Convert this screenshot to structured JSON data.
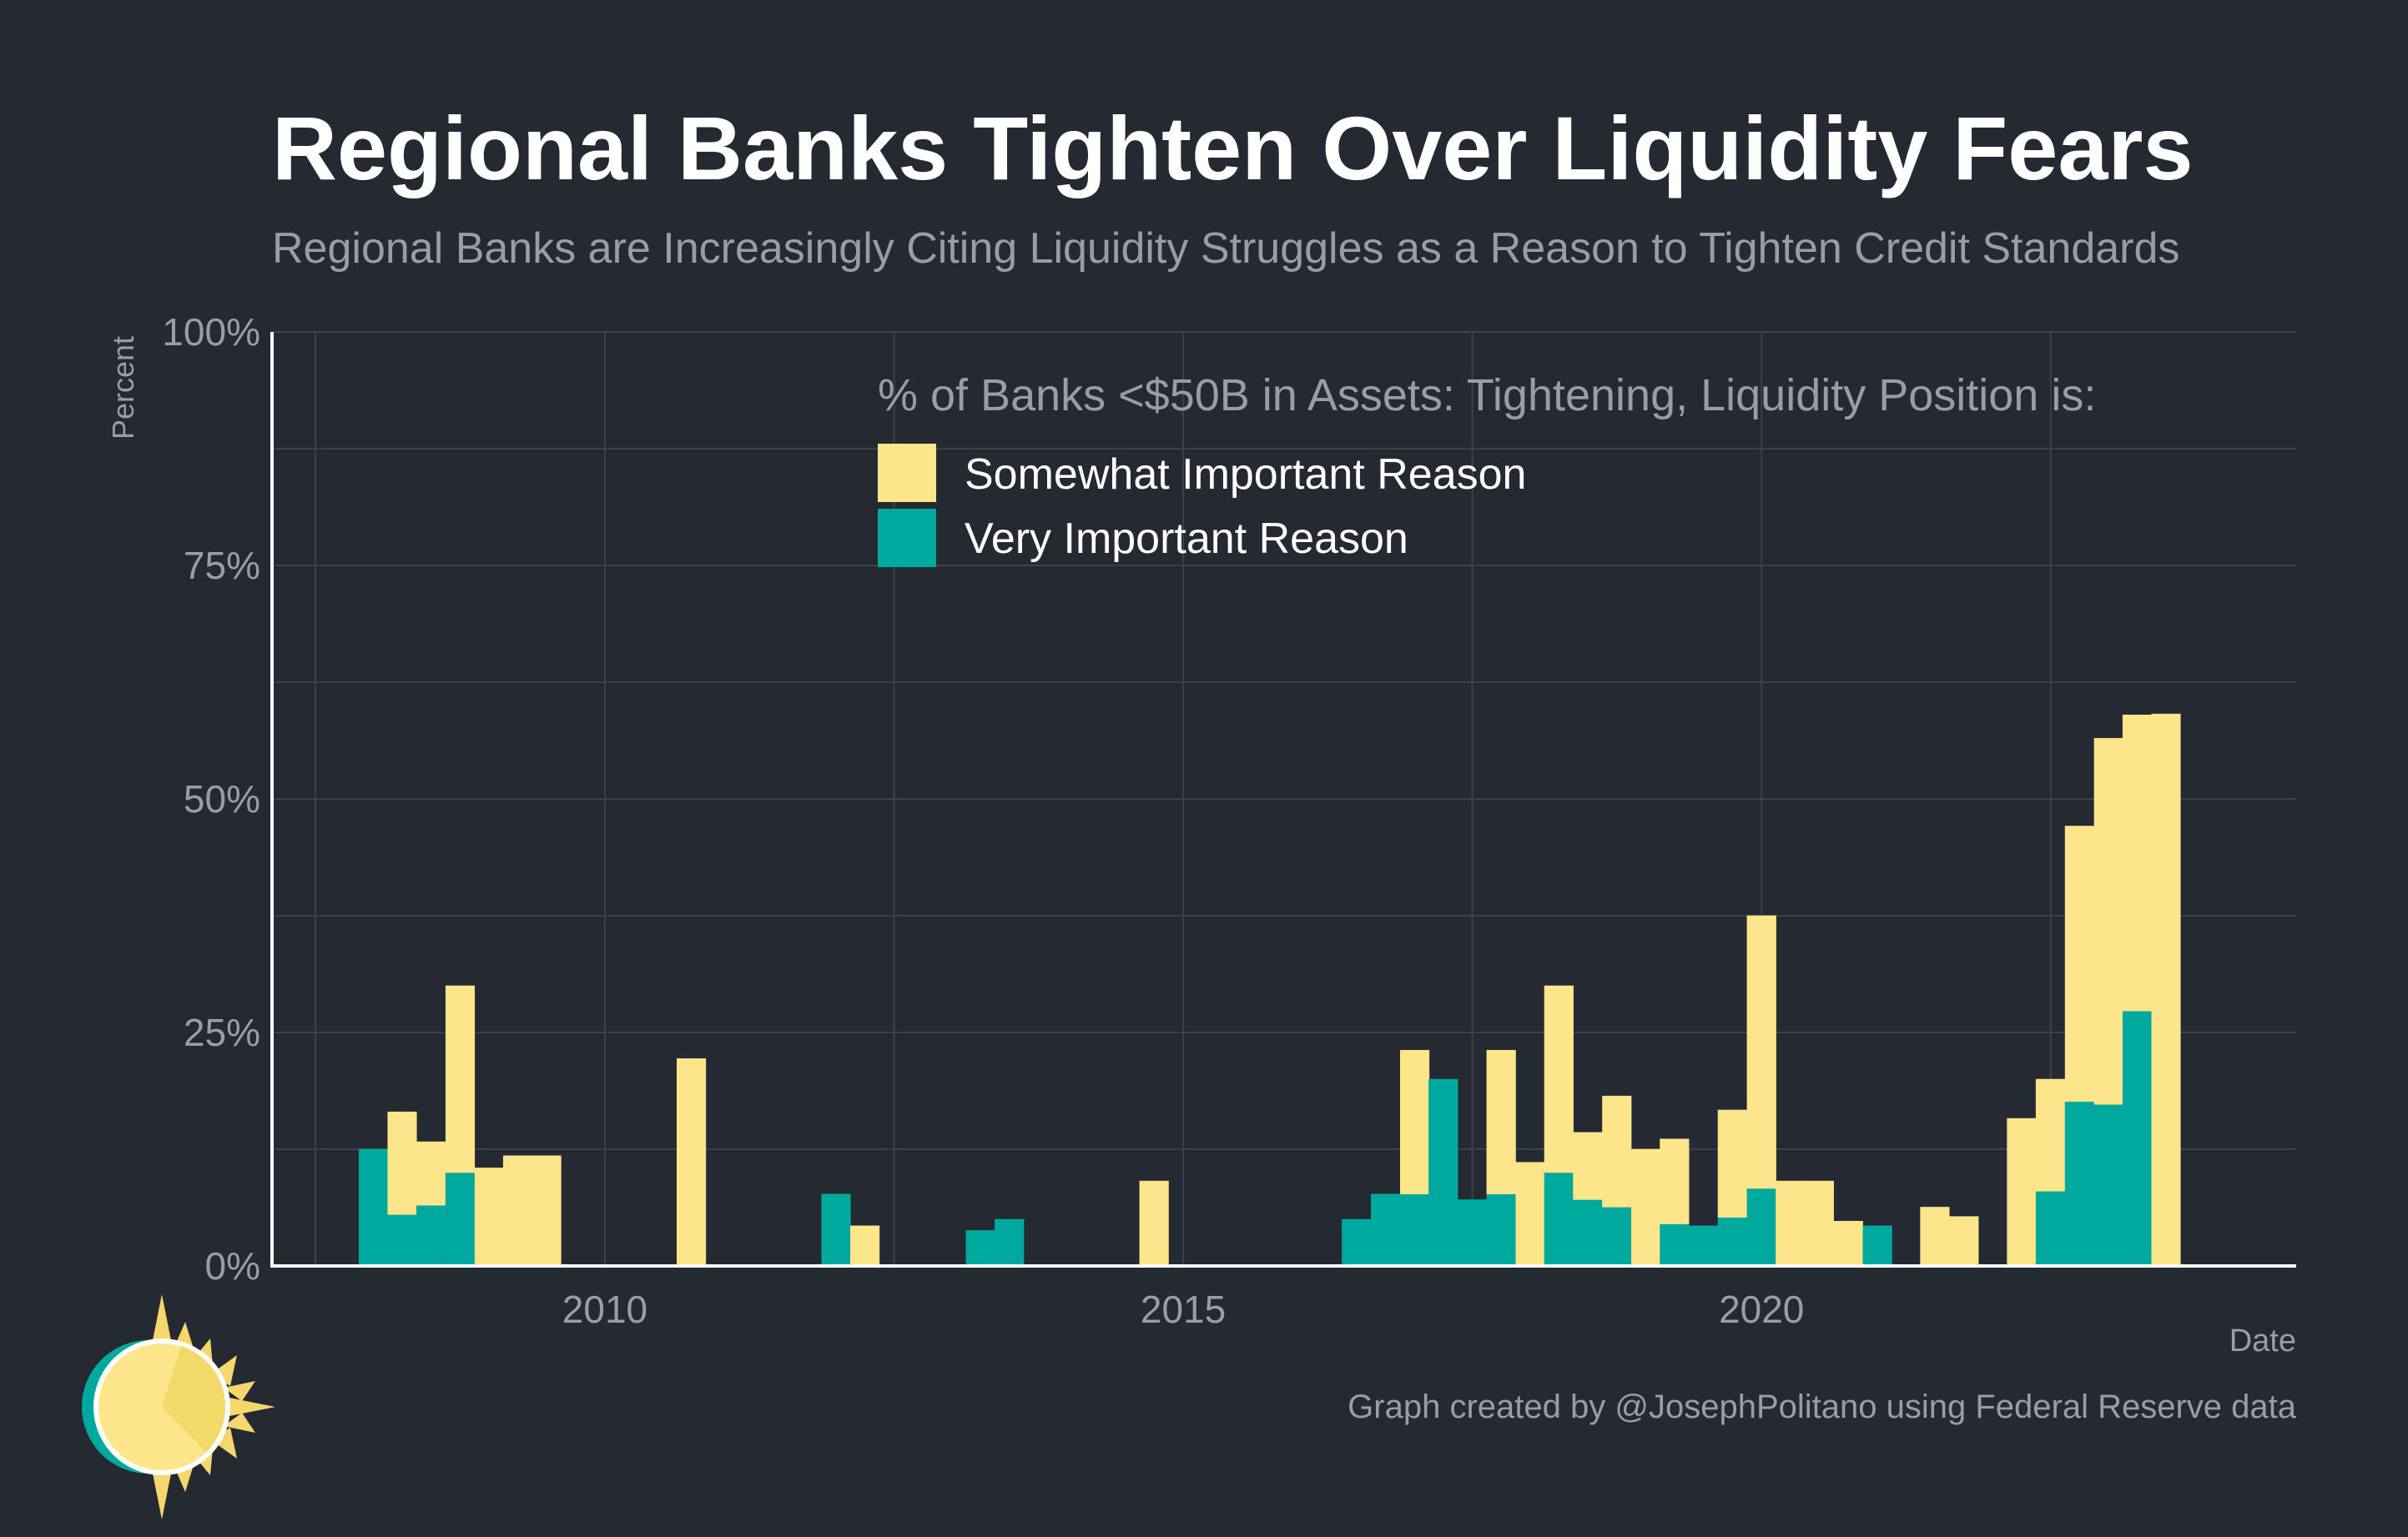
{
  "colors": {
    "background": "#252932",
    "somewhat": "#FDE68A",
    "very": "#00A99D",
    "grid": "#3D414A",
    "axis": "#FFFFFF",
    "tick_text": "#9A9DA3",
    "title": "#FFFFFF",
    "subtitle": "#9A9DA3",
    "logo_sun": "#FDE68A",
    "logo_rays": "#F5D76E",
    "logo_ring": "#00A99D"
  },
  "icons": {
    "logo": "sun-logo-icon"
  },
  "chart_data": {
    "type": "bar",
    "stacked": true,
    "title": "Regional Banks Tighten Over Liquidity Fears",
    "subtitle": "Regional Banks are Increasingly Citing Liquidity Struggles as a Reason to Tighten Credit Standards",
    "xlabel": "Date",
    "ylabel": "Percent",
    "legend_title": "% of Banks <$50B in Assets: Tightening, Liquidity Position is:",
    "legend_position": "top-center",
    "caption": "Graph created by @JosephPolitano using Federal Reserve data",
    "xlim": [
      "2007-02-15",
      "2024-08-15"
    ],
    "ylim": [
      0,
      100
    ],
    "x_ticks": [
      {
        "date": "2010-01-01",
        "label": "2010"
      },
      {
        "date": "2015-01-01",
        "label": "2015"
      },
      {
        "date": "2020-01-01",
        "label": "2020"
      }
    ],
    "y_ticks": [
      {
        "value": 0,
        "label": "0%"
      },
      {
        "value": 25,
        "label": "25%"
      },
      {
        "value": 50,
        "label": "50%"
      },
      {
        "value": 75,
        "label": "75%"
      },
      {
        "value": 100,
        "label": "100%"
      }
    ],
    "grid": true,
    "bar_width_months": 3,
    "x": [
      "2008-01-01",
      "2008-04-01",
      "2008-07-01",
      "2008-10-01",
      "2009-01-01",
      "2009-04-01",
      "2009-07-01",
      "2010-10-01",
      "2012-01-01",
      "2012-04-01",
      "2013-04-01",
      "2013-07-01",
      "2014-10-01",
      "2016-07-01",
      "2016-10-01",
      "2017-01-01",
      "2017-04-01",
      "2017-07-01",
      "2017-10-01",
      "2018-01-01",
      "2018-04-01",
      "2018-07-01",
      "2018-10-01",
      "2019-01-01",
      "2019-04-01",
      "2019-07-01",
      "2019-10-01",
      "2020-01-01",
      "2020-04-01",
      "2020-07-01",
      "2020-10-01",
      "2021-01-01",
      "2021-07-01",
      "2021-10-01",
      "2022-04-01",
      "2022-07-01",
      "2022-10-01",
      "2023-01-01",
      "2023-04-01",
      "2023-07-01"
    ],
    "series": [
      {
        "name": "Very Important Reason",
        "color": "#00A99D",
        "values": [
          12.5,
          5.5,
          6.5,
          10,
          0,
          0,
          0,
          0,
          7.7,
          0,
          3.8,
          5,
          0,
          5,
          7.7,
          7.7,
          20,
          7.1,
          7.7,
          0,
          10,
          7.1,
          6.3,
          0,
          4.5,
          4.3,
          5.2,
          8.3,
          0,
          0,
          0,
          4.3,
          0,
          0,
          0,
          8,
          17.6,
          17.3,
          27.3,
          0
        ]
      },
      {
        "name": "Somewhat Important Reason",
        "color": "#FDE68A",
        "values": [
          0,
          11,
          6.8,
          20,
          10.5,
          11.8,
          11.8,
          22.2,
          0,
          4.3,
          0,
          0,
          9.1,
          0,
          0,
          15.4,
          0,
          0,
          15.4,
          11.1,
          20,
          7.2,
          11.9,
          12.5,
          9.1,
          0,
          11.5,
          29.2,
          9.1,
          9.1,
          4.8,
          0,
          6.3,
          5.3,
          15.8,
          12,
          29.5,
          39.2,
          31.7,
          59.1
        ]
      }
    ]
  }
}
